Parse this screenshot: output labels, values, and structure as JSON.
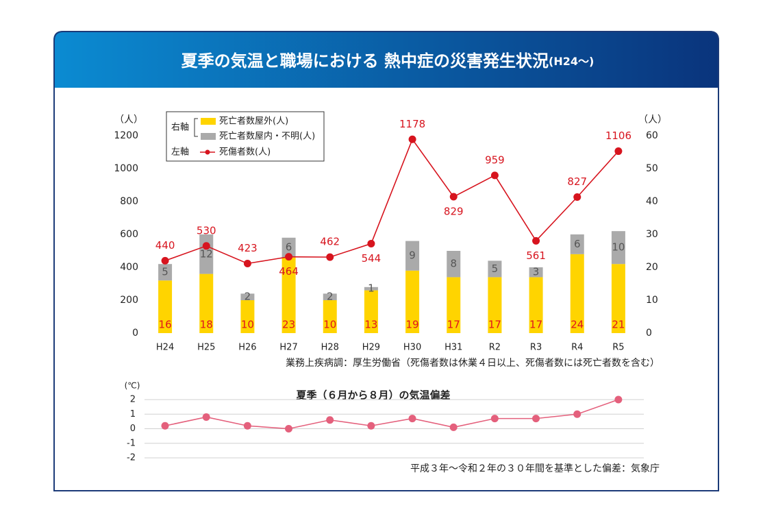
{
  "header": {
    "title": "夏季の気温と職場における 熱中症の災害発生状況",
    "title_suffix": "(H24～)"
  },
  "chart_data": [
    {
      "type": "combo",
      "categories": [
        "H24",
        "H25",
        "H26",
        "H27",
        "H28",
        "H29",
        "H30",
        "H31",
        "R2",
        "R3",
        "R4",
        "R5"
      ],
      "y_unit": "（人）",
      "y2_unit": "（人）",
      "ylim": [
        0,
        1200
      ],
      "yticks": [
        0,
        200,
        400,
        600,
        800,
        1000,
        1200
      ],
      "y2lim": [
        0,
        60
      ],
      "y2ticks": [
        0,
        10,
        20,
        30,
        40,
        50,
        60
      ],
      "stacked": true,
      "grid": false,
      "legend": "top-left",
      "legend_right_axis_label": "右軸",
      "legend_left_axis_label": "左軸",
      "series": [
        {
          "name": "死亡者数屋外(人)",
          "type": "bar",
          "axis": "y2",
          "color": "#ffd400",
          "label_color": "#e0141e",
          "values": [
            16,
            18,
            10,
            23,
            10,
            13,
            19,
            17,
            17,
            17,
            24,
            21
          ]
        },
        {
          "name": "死亡者数屋内・不明(人)",
          "type": "bar",
          "axis": "y2",
          "color": "#aaaaaa",
          "label_color": "#555555",
          "values": [
            5,
            12,
            2,
            6,
            2,
            1,
            9,
            8,
            5,
            3,
            6,
            10
          ]
        },
        {
          "name": "死傷者数(人)",
          "type": "line",
          "axis": "y",
          "color": "#d7141e",
          "label_color": "#d7141e",
          "values": [
            440,
            530,
            423,
            464,
            462,
            544,
            1178,
            829,
            959,
            561,
            827,
            1106
          ]
        }
      ],
      "note": "業務上疾病調：厚生労働省（死傷者数は休業４日以上、死傷者数には死亡者数を含む）"
    },
    {
      "type": "line",
      "title": "夏季（６月から８月）の気温偏差",
      "y_unit": "(℃)",
      "categories": [
        null,
        null,
        null,
        null,
        null,
        null,
        null,
        null,
        null,
        null,
        null,
        null
      ],
      "ylim": [
        -2,
        2
      ],
      "yticks": [
        2,
        1,
        0,
        -1,
        -2
      ],
      "grid": true,
      "series": [
        {
          "color": "#e4607c",
          "values": [
            0.2,
            0.8,
            0.2,
            0.0,
            0.6,
            0.2,
            0.7,
            0.1,
            0.7,
            0.7,
            1.0,
            2.0
          ]
        }
      ],
      "note": "平成３年～令和２年の３０年間を基準とした偏差：気象庁"
    }
  ]
}
